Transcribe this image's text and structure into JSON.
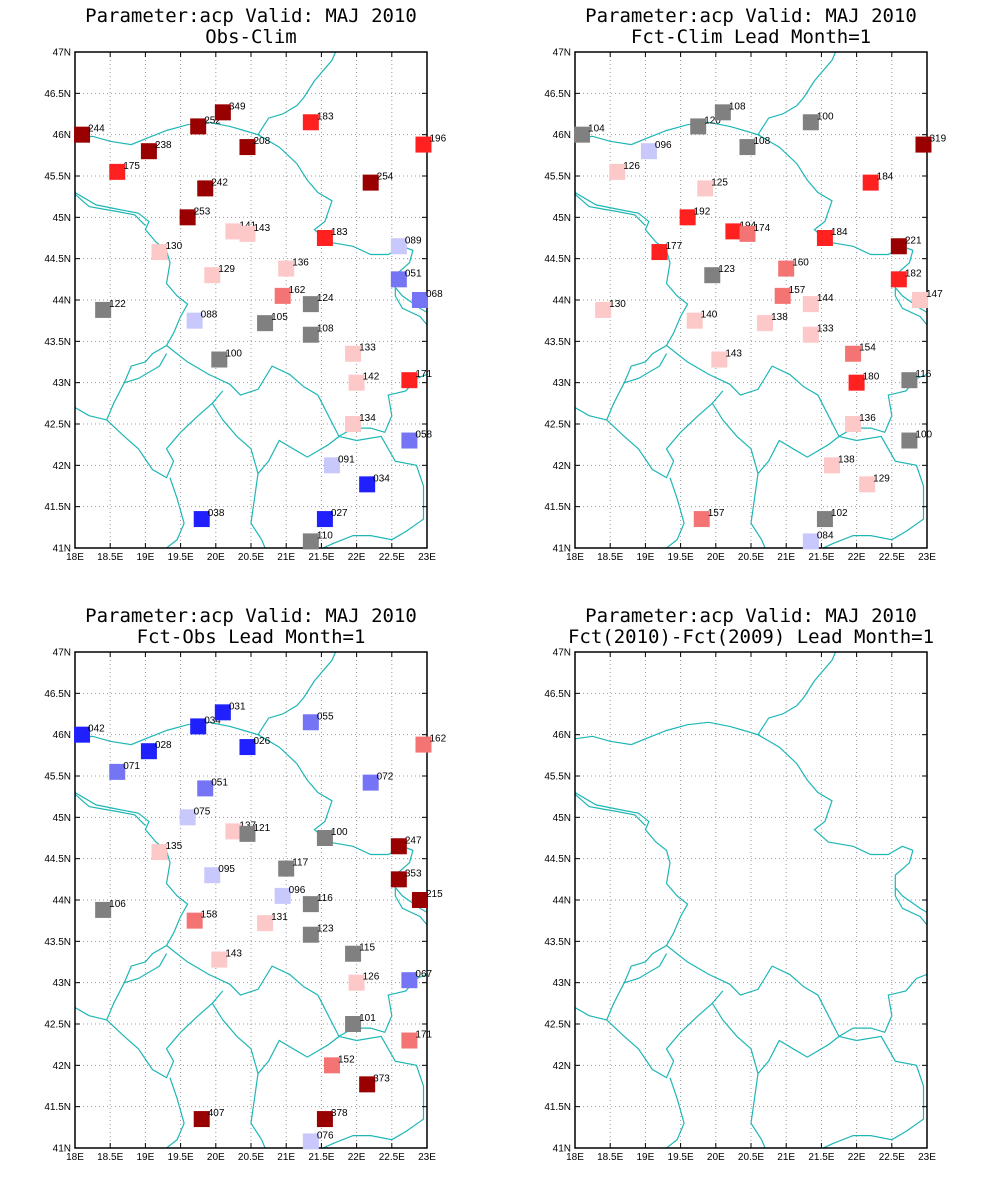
{
  "colors": {
    "dark_red": "#990000",
    "red": "#ff2020",
    "mid_red": "#f47474",
    "pink": "#fcc8c8",
    "gray": "#808080",
    "light_blue": "#c8c8fc",
    "mid_blue": "#7474f4",
    "blue": "#2020ff",
    "border": "#1fb6b6"
  },
  "axis": {
    "x_ticks": [
      "18E",
      "18.5E",
      "19E",
      "19.5E",
      "20E",
      "20.5E",
      "21E",
      "21.5E",
      "22E",
      "22.5E",
      "23E"
    ],
    "y_ticks": [
      "41N",
      "41.5N",
      "42N",
      "42.5N",
      "43N",
      "43.5N",
      "44N",
      "44.5N",
      "45N",
      "45.5N",
      "46N",
      "46.5N",
      "47N"
    ]
  },
  "panels": [
    {
      "title1": "Parameter:acp Valid: MAJ 2010",
      "title2": "Obs-Clim",
      "stations": [
        {
          "lon": 18.1,
          "lat": 46.0,
          "label": "244",
          "c": "dark_red"
        },
        {
          "lon": 18.6,
          "lat": 45.55,
          "label": "175",
          "c": "red"
        },
        {
          "lon": 19.05,
          "lat": 45.8,
          "label": "238",
          "c": "dark_red"
        },
        {
          "lon": 19.75,
          "lat": 46.1,
          "label": "252",
          "c": "dark_red"
        },
        {
          "lon": 20.1,
          "lat": 46.27,
          "label": "349",
          "c": "dark_red"
        },
        {
          "lon": 20.45,
          "lat": 45.85,
          "label": "208",
          "c": "dark_red"
        },
        {
          "lon": 21.35,
          "lat": 46.15,
          "label": "183",
          "c": "red"
        },
        {
          "lon": 22.95,
          "lat": 45.88,
          "label": "196",
          "c": "red"
        },
        {
          "lon": 19.85,
          "lat": 45.35,
          "label": "242",
          "c": "dark_red"
        },
        {
          "lon": 22.2,
          "lat": 45.42,
          "label": "254",
          "c": "dark_red"
        },
        {
          "lon": 19.6,
          "lat": 45.0,
          "label": "253",
          "c": "dark_red"
        },
        {
          "lon": 20.25,
          "lat": 44.83,
          "label": "141",
          "c": "pink"
        },
        {
          "lon": 20.45,
          "lat": 44.8,
          "label": "143",
          "c": "pink"
        },
        {
          "lon": 21.55,
          "lat": 44.75,
          "label": "183",
          "c": "red"
        },
        {
          "lon": 22.6,
          "lat": 44.65,
          "label": "089",
          "c": "light_blue"
        },
        {
          "lon": 19.2,
          "lat": 44.58,
          "label": "130",
          "c": "pink"
        },
        {
          "lon": 19.95,
          "lat": 44.3,
          "label": "129",
          "c": "pink"
        },
        {
          "lon": 21.0,
          "lat": 44.38,
          "label": "136",
          "c": "pink"
        },
        {
          "lon": 22.6,
          "lat": 44.25,
          "label": "051",
          "c": "mid_blue"
        },
        {
          "lon": 20.95,
          "lat": 44.05,
          "label": "162",
          "c": "mid_red"
        },
        {
          "lon": 21.35,
          "lat": 43.95,
          "label": "124",
          "c": "gray"
        },
        {
          "lon": 22.9,
          "lat": 44.0,
          "label": "068",
          "c": "mid_blue"
        },
        {
          "lon": 18.4,
          "lat": 43.88,
          "label": "122",
          "c": "gray"
        },
        {
          "lon": 19.7,
          "lat": 43.75,
          "label": "088",
          "c": "light_blue"
        },
        {
          "lon": 20.7,
          "lat": 43.72,
          "label": "105",
          "c": "gray"
        },
        {
          "lon": 21.35,
          "lat": 43.58,
          "label": "108",
          "c": "gray"
        },
        {
          "lon": 21.95,
          "lat": 43.35,
          "label": "133",
          "c": "pink"
        },
        {
          "lon": 20.05,
          "lat": 43.28,
          "label": "100",
          "c": "gray"
        },
        {
          "lon": 22.0,
          "lat": 43.0,
          "label": "142",
          "c": "pink"
        },
        {
          "lon": 22.75,
          "lat": 43.03,
          "label": "171",
          "c": "red"
        },
        {
          "lon": 21.95,
          "lat": 42.5,
          "label": "134",
          "c": "pink"
        },
        {
          "lon": 22.75,
          "lat": 42.3,
          "label": "058",
          "c": "mid_blue"
        },
        {
          "lon": 21.65,
          "lat": 42.0,
          "label": "091",
          "c": "light_blue"
        },
        {
          "lon": 22.15,
          "lat": 41.77,
          "label": "034",
          "c": "blue"
        },
        {
          "lon": 19.8,
          "lat": 41.35,
          "label": "038",
          "c": "blue"
        },
        {
          "lon": 21.55,
          "lat": 41.35,
          "label": "027",
          "c": "blue"
        },
        {
          "lon": 21.35,
          "lat": 41.08,
          "label": "110",
          "c": "gray"
        }
      ]
    },
    {
      "title1": "Parameter:acp Valid: MAJ 2010",
      "title2": "Fct-Clim Lead Month=1",
      "stations": [
        {
          "lon": 18.1,
          "lat": 46.0,
          "label": "104",
          "c": "gray"
        },
        {
          "lon": 18.6,
          "lat": 45.55,
          "label": "126",
          "c": "pink"
        },
        {
          "lon": 19.05,
          "lat": 45.8,
          "label": "096",
          "c": "light_blue"
        },
        {
          "lon": 19.75,
          "lat": 46.1,
          "label": "120",
          "c": "gray"
        },
        {
          "lon": 20.1,
          "lat": 46.27,
          "label": "108",
          "c": "gray"
        },
        {
          "lon": 20.45,
          "lat": 45.85,
          "label": "108",
          "c": "gray"
        },
        {
          "lon": 21.35,
          "lat": 46.15,
          "label": "100",
          "c": "gray"
        },
        {
          "lon": 22.95,
          "lat": 45.88,
          "label": "319",
          "c": "dark_red"
        },
        {
          "lon": 19.85,
          "lat": 45.35,
          "label": "125",
          "c": "pink"
        },
        {
          "lon": 22.2,
          "lat": 45.42,
          "label": "184",
          "c": "red"
        },
        {
          "lon": 19.6,
          "lat": 45.0,
          "label": "192",
          "c": "red"
        },
        {
          "lon": 20.25,
          "lat": 44.83,
          "label": "194",
          "c": "red"
        },
        {
          "lon": 20.45,
          "lat": 44.8,
          "label": "174",
          "c": "mid_red"
        },
        {
          "lon": 21.55,
          "lat": 44.75,
          "label": "184",
          "c": "red"
        },
        {
          "lon": 22.6,
          "lat": 44.65,
          "label": "221",
          "c": "dark_red"
        },
        {
          "lon": 19.2,
          "lat": 44.58,
          "label": "177",
          "c": "red"
        },
        {
          "lon": 19.95,
          "lat": 44.3,
          "label": "123",
          "c": "gray"
        },
        {
          "lon": 21.0,
          "lat": 44.38,
          "label": "160",
          "c": "mid_red"
        },
        {
          "lon": 22.6,
          "lat": 44.25,
          "label": "182",
          "c": "red"
        },
        {
          "lon": 20.95,
          "lat": 44.05,
          "label": "157",
          "c": "mid_red"
        },
        {
          "lon": 21.35,
          "lat": 43.95,
          "label": "144",
          "c": "pink"
        },
        {
          "lon": 22.9,
          "lat": 44.0,
          "label": "147",
          "c": "pink"
        },
        {
          "lon": 18.4,
          "lat": 43.88,
          "label": "130",
          "c": "pink"
        },
        {
          "lon": 19.7,
          "lat": 43.75,
          "label": "140",
          "c": "pink"
        },
        {
          "lon": 20.7,
          "lat": 43.72,
          "label": "138",
          "c": "pink"
        },
        {
          "lon": 21.35,
          "lat": 43.58,
          "label": "133",
          "c": "pink"
        },
        {
          "lon": 21.95,
          "lat": 43.35,
          "label": "154",
          "c": "mid_red"
        },
        {
          "lon": 20.05,
          "lat": 43.28,
          "label": "143",
          "c": "pink"
        },
        {
          "lon": 22.0,
          "lat": 43.0,
          "label": "180",
          "c": "red"
        },
        {
          "lon": 22.75,
          "lat": 43.03,
          "label": "116",
          "c": "gray"
        },
        {
          "lon": 21.95,
          "lat": 42.5,
          "label": "136",
          "c": "pink"
        },
        {
          "lon": 22.75,
          "lat": 42.3,
          "label": "100",
          "c": "gray"
        },
        {
          "lon": 21.65,
          "lat": 42.0,
          "label": "138",
          "c": "pink"
        },
        {
          "lon": 22.15,
          "lat": 41.77,
          "label": "129",
          "c": "pink"
        },
        {
          "lon": 19.8,
          "lat": 41.35,
          "label": "157",
          "c": "mid_red"
        },
        {
          "lon": 21.55,
          "lat": 41.35,
          "label": "102",
          "c": "gray"
        },
        {
          "lon": 21.35,
          "lat": 41.08,
          "label": "084",
          "c": "light_blue"
        }
      ]
    },
    {
      "title1": "Parameter:acp Valid: MAJ 2010",
      "title2": "Fct-Obs Lead Month=1",
      "stations": [
        {
          "lon": 18.1,
          "lat": 46.0,
          "label": "042",
          "c": "blue"
        },
        {
          "lon": 18.6,
          "lat": 45.55,
          "label": "071",
          "c": "mid_blue"
        },
        {
          "lon": 19.05,
          "lat": 45.8,
          "label": "028",
          "c": "blue"
        },
        {
          "lon": 19.75,
          "lat": 46.1,
          "label": "034",
          "c": "blue"
        },
        {
          "lon": 20.1,
          "lat": 46.27,
          "label": "031",
          "c": "blue"
        },
        {
          "lon": 20.45,
          "lat": 45.85,
          "label": "026",
          "c": "blue"
        },
        {
          "lon": 21.35,
          "lat": 46.15,
          "label": "055",
          "c": "mid_blue"
        },
        {
          "lon": 22.95,
          "lat": 45.88,
          "label": "162",
          "c": "mid_red"
        },
        {
          "lon": 19.85,
          "lat": 45.35,
          "label": "051",
          "c": "mid_blue"
        },
        {
          "lon": 22.2,
          "lat": 45.42,
          "label": "072",
          "c": "mid_blue"
        },
        {
          "lon": 19.6,
          "lat": 45.0,
          "label": "075",
          "c": "light_blue"
        },
        {
          "lon": 20.25,
          "lat": 44.83,
          "label": "137",
          "c": "pink"
        },
        {
          "lon": 20.45,
          "lat": 44.8,
          "label": "121",
          "c": "gray"
        },
        {
          "lon": 21.55,
          "lat": 44.75,
          "label": "100",
          "c": "gray"
        },
        {
          "lon": 22.6,
          "lat": 44.65,
          "label": "247",
          "c": "dark_red"
        },
        {
          "lon": 19.2,
          "lat": 44.58,
          "label": "135",
          "c": "pink"
        },
        {
          "lon": 19.95,
          "lat": 44.3,
          "label": "095",
          "c": "light_blue"
        },
        {
          "lon": 21.0,
          "lat": 44.38,
          "label": "117",
          "c": "gray"
        },
        {
          "lon": 22.6,
          "lat": 44.25,
          "label": "353",
          "c": "dark_red"
        },
        {
          "lon": 20.95,
          "lat": 44.05,
          "label": "096",
          "c": "light_blue"
        },
        {
          "lon": 21.35,
          "lat": 43.95,
          "label": "116",
          "c": "gray"
        },
        {
          "lon": 22.9,
          "lat": 44.0,
          "label": "215",
          "c": "dark_red"
        },
        {
          "lon": 18.4,
          "lat": 43.88,
          "label": "106",
          "c": "gray"
        },
        {
          "lon": 19.7,
          "lat": 43.75,
          "label": "158",
          "c": "mid_red"
        },
        {
          "lon": 20.7,
          "lat": 43.72,
          "label": "131",
          "c": "pink"
        },
        {
          "lon": 21.35,
          "lat": 43.58,
          "label": "123",
          "c": "gray"
        },
        {
          "lon": 21.95,
          "lat": 43.35,
          "label": "115",
          "c": "gray"
        },
        {
          "lon": 20.05,
          "lat": 43.28,
          "label": "143",
          "c": "pink"
        },
        {
          "lon": 22.0,
          "lat": 43.0,
          "label": "126",
          "c": "pink"
        },
        {
          "lon": 22.75,
          "lat": 43.03,
          "label": "067",
          "c": "mid_blue"
        },
        {
          "lon": 21.95,
          "lat": 42.5,
          "label": "101",
          "c": "gray"
        },
        {
          "lon": 22.75,
          "lat": 42.3,
          "label": "171",
          "c": "mid_red"
        },
        {
          "lon": 21.65,
          "lat": 42.0,
          "label": "152",
          "c": "mid_red"
        },
        {
          "lon": 22.15,
          "lat": 41.77,
          "label": "373",
          "c": "dark_red"
        },
        {
          "lon": 19.8,
          "lat": 41.35,
          "label": "407",
          "c": "dark_red"
        },
        {
          "lon": 21.55,
          "lat": 41.35,
          "label": "378",
          "c": "dark_red"
        },
        {
          "lon": 21.35,
          "lat": 41.08,
          "label": "076",
          "c": "light_blue"
        }
      ]
    },
    {
      "title1": "Parameter:acp Valid: MAJ 2010",
      "title2": "Fct(2010)-Fct(2009) Lead Month=1",
      "stations": []
    }
  ]
}
